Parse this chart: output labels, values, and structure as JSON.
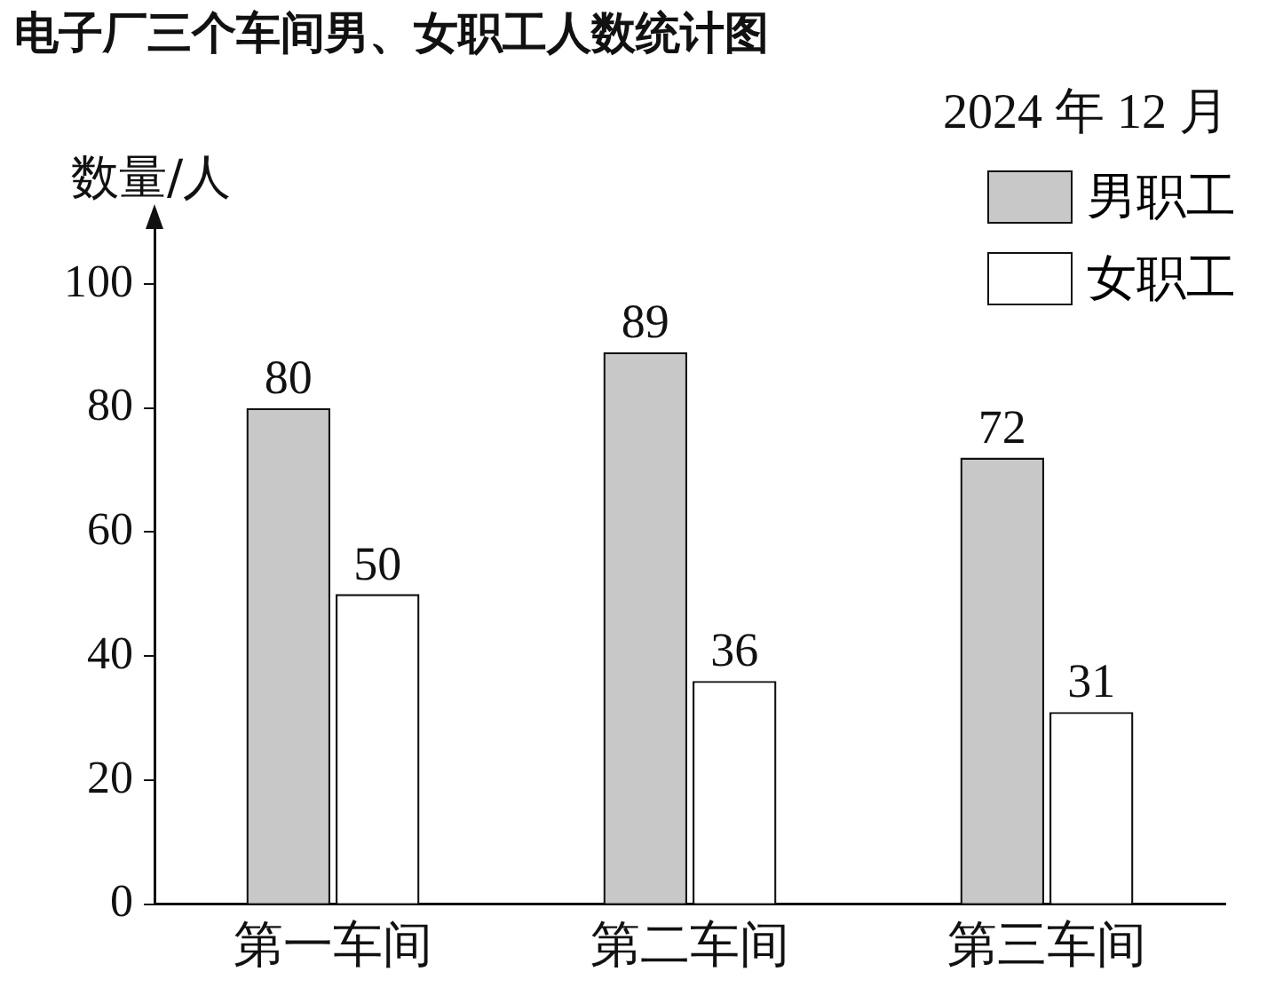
{
  "chart_data": {
    "type": "bar",
    "title": "电子厂三个车间男、女职工人数统计图",
    "subtitle": "2024 年 12 月",
    "ylabel": "数量/人",
    "categories": [
      "第一车间",
      "第二车间",
      "第三车间"
    ],
    "series": [
      {
        "name": "男职工",
        "color": "#c8c8c8",
        "values": [
          80,
          89,
          72
        ]
      },
      {
        "name": "女职工",
        "color": "#ffffff",
        "values": [
          50,
          36,
          31
        ]
      }
    ],
    "ylim": [
      0,
      110
    ],
    "yticks": [
      0,
      20,
      40,
      60,
      80,
      100
    ],
    "grid": false,
    "legend": "top right",
    "data_labels": true
  }
}
